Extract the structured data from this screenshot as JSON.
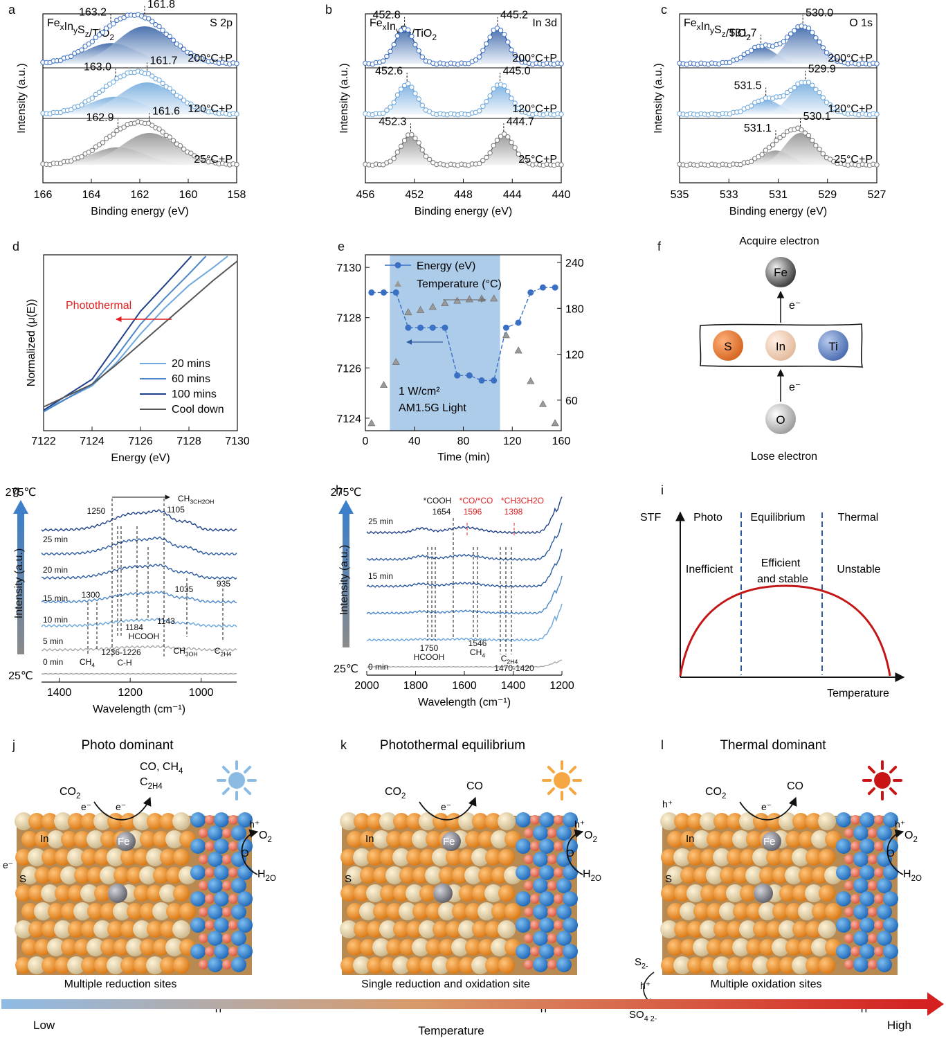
{
  "panel_letters": [
    "a",
    "b",
    "c",
    "d",
    "e",
    "f",
    "g",
    "h",
    "i",
    "j",
    "k",
    "l"
  ],
  "chart_data": [
    {
      "id": "a",
      "type": "line",
      "title_formula": "FexInySz/TiO2",
      "corner_label": "S 2p",
      "xlabel": "Binding energy (eV)",
      "ylabel": "Intensity (a.u.)",
      "xlim": [
        166,
        158
      ],
      "xticks": [
        "166",
        "164",
        "162",
        "160",
        "158"
      ],
      "series": [
        {
          "name": "200°C+P",
          "peaks": [
            {
              "energy": 163.2,
              "label": "163.2"
            },
            {
              "energy": 161.8,
              "label": "161.8"
            }
          ]
        },
        {
          "name": "120°C+P",
          "peaks": [
            {
              "energy": 163.0,
              "label": "163.0"
            },
            {
              "energy": 161.7,
              "label": "161.7"
            }
          ]
        },
        {
          "name": "25°C+P",
          "peaks": [
            {
              "energy": 162.9,
              "label": "162.9"
            },
            {
              "energy": 161.6,
              "label": "161.6"
            }
          ]
        }
      ]
    },
    {
      "id": "b",
      "type": "line",
      "title_formula": "FexInySz/TiO2",
      "corner_label": "In 3d",
      "xlabel": "Binding energy (eV)",
      "ylabel": "Intensity (a.u.)",
      "xlim": [
        456,
        440
      ],
      "xticks": [
        "456",
        "452",
        "448",
        "444",
        "440"
      ],
      "series": [
        {
          "name": "200°C+P",
          "peaks": [
            {
              "energy": 452.8,
              "label": "452.8"
            },
            {
              "energy": 445.2,
              "label": "445.2"
            }
          ]
        },
        {
          "name": "120°C+P",
          "peaks": [
            {
              "energy": 452.6,
              "label": "452.6"
            },
            {
              "energy": 445.0,
              "label": "445.0"
            }
          ]
        },
        {
          "name": "25°C+P",
          "peaks": [
            {
              "energy": 452.3,
              "label": "452.3"
            },
            {
              "energy": 444.7,
              "label": "444.7"
            }
          ]
        }
      ]
    },
    {
      "id": "c",
      "type": "line",
      "title_formula": "FexInySz/TiO2",
      "corner_label": "O 1s",
      "xlabel": "Binding energy (eV)",
      "ylabel": "Intensity (a.u.)",
      "xlim": [
        535,
        527
      ],
      "xticks": [
        "535",
        "533",
        "531",
        "529",
        "527"
      ],
      "series": [
        {
          "name": "200°C+P",
          "peaks": [
            {
              "energy": 531.7,
              "label": "531.7"
            },
            {
              "energy": 530.0,
              "label": "530.0"
            }
          ]
        },
        {
          "name": "120°C+P",
          "peaks": [
            {
              "energy": 531.5,
              "label": "531.5"
            },
            {
              "energy": 529.9,
              "label": "529.9"
            }
          ]
        },
        {
          "name": "25°C+P",
          "peaks": [
            {
              "energy": 531.1,
              "label": "531.1"
            },
            {
              "energy": 530.1,
              "label": "530.1"
            }
          ]
        }
      ]
    },
    {
      "id": "d",
      "type": "line",
      "xlabel": "Energy (eV)",
      "ylabel": "Normalized (μ(E))",
      "xlim": [
        7122,
        7130
      ],
      "xticks": [
        "7122",
        "7124",
        "7126",
        "7128",
        "7130"
      ],
      "annotation": "Photothermal",
      "series": [
        {
          "name": "20 mins",
          "color": "#6fa8dc",
          "x": [
            7122,
            7124,
            7125,
            7126,
            7127,
            7128,
            7129,
            7129.6
          ],
          "y": [
            0.05,
            0.2,
            0.34,
            0.52,
            0.68,
            0.82,
            0.93,
            1.0
          ]
        },
        {
          "name": "60 mins",
          "color": "#4a86c8",
          "x": [
            7122,
            7124,
            7125,
            7126,
            7127,
            7128,
            7128.7
          ],
          "y": [
            0.04,
            0.21,
            0.38,
            0.58,
            0.74,
            0.89,
            1.0
          ]
        },
        {
          "name": "100 mins",
          "color": "#1f3f8a",
          "x": [
            7122,
            7124,
            7125,
            7126,
            7127,
            7128.1
          ],
          "y": [
            0.05,
            0.24,
            0.45,
            0.66,
            0.82,
            1.0
          ]
        },
        {
          "name": "Cool down",
          "color": "#555555",
          "x": [
            7122,
            7124,
            7125,
            7126,
            7127,
            7128,
            7129,
            7130
          ],
          "y": [
            0.07,
            0.21,
            0.33,
            0.46,
            0.59,
            0.72,
            0.85,
            0.97
          ]
        }
      ]
    },
    {
      "id": "e",
      "type": "scatter",
      "xlabel": "Time (min)",
      "xlim": [
        0,
        160
      ],
      "xticks": [
        "0",
        "40",
        "80",
        "120",
        "160"
      ],
      "ylim_left": [
        7123.5,
        7130.5
      ],
      "yticks_left": [
        "7124",
        "7126",
        "7128",
        "7130"
      ],
      "ylim_right": [
        20,
        250
      ],
      "yticks_right": [
        "60",
        "120",
        "180",
        "240"
      ],
      "light_window": [
        20,
        110
      ],
      "light_label_1": "1 W/cm²",
      "light_label_2": "AM1.5G Light",
      "series": [
        {
          "name": "Energy (eV)",
          "color": "#3a6fc4",
          "x": [
            5,
            15,
            25,
            35,
            45,
            55,
            65,
            75,
            85,
            95,
            105,
            115,
            125,
            135,
            145,
            155
          ],
          "y": [
            7129.0,
            7129.0,
            7129.0,
            7127.6,
            7127.6,
            7127.6,
            7127.6,
            7125.7,
            7125.7,
            7125.5,
            7125.5,
            7127.6,
            7127.8,
            7129.0,
            7129.2,
            7129.2
          ]
        },
        {
          "name": "Temperature (°C)",
          "color": "#9a9a9a",
          "x": [
            5,
            15,
            25,
            35,
            45,
            55,
            65,
            75,
            85,
            95,
            105,
            115,
            125,
            135,
            145,
            155
          ],
          "y": [
            30,
            80,
            110,
            175,
            178,
            182,
            187,
            190,
            192,
            193,
            193,
            145,
            125,
            85,
            55,
            30
          ]
        }
      ]
    },
    {
      "id": "g",
      "type": "line",
      "xlabel": "Wavelength (cm⁻¹)",
      "ylabel": "Intensity (a.u.)",
      "xlim": [
        1450,
        900
      ],
      "xticks": [
        "1400",
        "1200",
        "1000"
      ],
      "temp_top": "275℃",
      "temp_bottom": "25℃",
      "series_names": [
        "25 min",
        "20 min",
        "15 min",
        "10 min",
        "5 min",
        "0 min"
      ],
      "peak_labels": [
        "1250",
        "1105",
        "1035",
        "935",
        "1300",
        "1184",
        "1143",
        "1236-1226",
        "C-H",
        "CH4",
        "HCOOH",
        "CH3OH",
        "C2H4",
        "CH3CH2OH"
      ]
    },
    {
      "id": "h",
      "type": "line",
      "xlabel": "Wavelength (cm⁻¹)",
      "ylabel": "Intensity (a.u.)",
      "xlim": [
        2000,
        1200
      ],
      "xticks": [
        "2000",
        "1800",
        "1600",
        "1400",
        "1200"
      ],
      "temp_top": "275℃",
      "temp_bottom": "25℃",
      "series_names": [
        "25 min",
        "15 min",
        "0 min"
      ],
      "peak_labels": [
        "*COOH",
        "1654",
        "*CO/*CO",
        "1596",
        "*CH3CH2O",
        "1398",
        "1750",
        "HCOOH",
        "1546",
        "CH4",
        "C2H4",
        "1470-1420"
      ]
    },
    {
      "id": "i",
      "type": "area",
      "ylabel": "STF",
      "xlabel": "Temperature",
      "regions": [
        "Photo",
        "Equilibrium",
        "Thermal"
      ],
      "region_notes": [
        "Inefficient",
        "Efficient",
        "and stable",
        "Unstable"
      ],
      "curve_x": [
        0,
        0.05,
        0.15,
        0.3,
        0.5,
        0.7,
        0.85,
        0.95,
        1.0
      ],
      "curve_y": [
        0,
        0.42,
        0.7,
        0.86,
        0.92,
        0.86,
        0.7,
        0.42,
        0
      ]
    }
  ],
  "panel_f": {
    "top_label": "Acquire electron",
    "bottom_label": "Lose electron",
    "electron": "e⁻",
    "atoms": [
      "Fe",
      "S",
      "In",
      "Ti",
      "O"
    ]
  },
  "scenes": [
    {
      "title": "Photo dominant",
      "caption": "Multiple reduction sites",
      "gas": "CO₂",
      "products": [
        "CO, CH₄",
        "C₂H₄"
      ],
      "ox_product": "O₂",
      "water": "H₂O",
      "atoms": [
        "In",
        "Fe",
        "S",
        "O",
        "Ti"
      ],
      "sun_color": "#8bbbe3"
    },
    {
      "title": "Photothermal equilibrium",
      "caption": "Single reduction and oxidation site",
      "gas": "CO₂",
      "products": [
        "CO"
      ],
      "ox_product": "O₂",
      "water": "H₂O",
      "atoms": [
        "In",
        "Fe",
        "S",
        "O",
        "Ti"
      ],
      "sun_color": "#f4a742"
    },
    {
      "title": "Thermal dominant",
      "caption": "Multiple oxidation sites",
      "gas": "CO₂",
      "products": [
        "CO"
      ],
      "ox_product": "O₂",
      "water": "H₂O",
      "atoms": [
        "In",
        "Fe",
        "S",
        "O",
        "Ti"
      ],
      "sun_color": "#c81414",
      "sulfur_cycle": [
        "S²⁻",
        "h⁺",
        "SO₄²⁻"
      ]
    }
  ],
  "scene_labels": {
    "electron": "e⁻",
    "hole": "h⁺"
  },
  "temperature_bar": {
    "low": "Low",
    "label": "Temperature",
    "high": "High"
  }
}
